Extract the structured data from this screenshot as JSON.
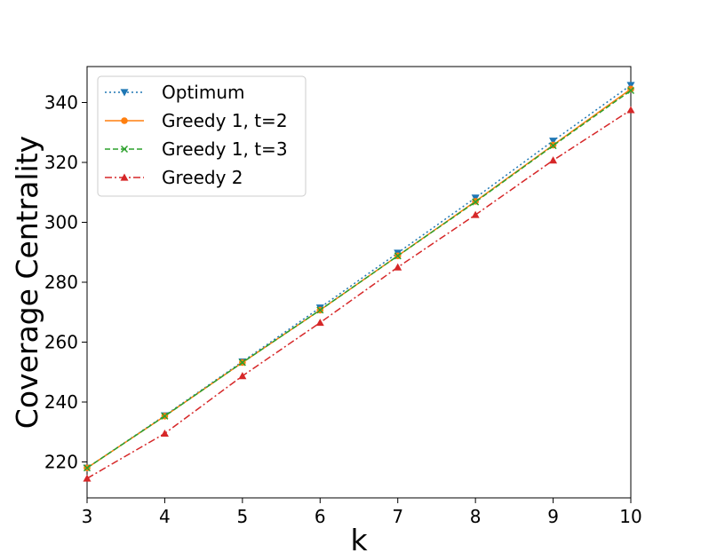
{
  "chart_data": {
    "type": "line",
    "title": "",
    "xlabel": "k",
    "ylabel": "Coverage Centrality",
    "x": [
      3,
      4,
      5,
      6,
      7,
      8,
      9,
      10
    ],
    "xlim": [
      3,
      10
    ],
    "ylim": [
      208,
      352
    ],
    "xticks": [
      "3",
      "4",
      "5",
      "6",
      "7",
      "8",
      "9",
      "10"
    ],
    "yticks": [
      "220",
      "240",
      "260",
      "280",
      "300",
      "320",
      "340"
    ],
    "grid": false,
    "legend_position": "upper-left",
    "series": [
      {
        "name": "Optimum",
        "values": [
          218,
          235.5,
          253.5,
          271.5,
          289.8,
          308.2,
          327.2,
          345.8
        ],
        "color": "#1f77b4",
        "dash": "2,3",
        "marker": "triangle-down"
      },
      {
        "name": "Greedy 1, t=2",
        "values": [
          218,
          235.3,
          253.2,
          270.7,
          288.8,
          307,
          325.8,
          344.5
        ],
        "color": "#ff7f0e",
        "dash": "",
        "marker": "circle"
      },
      {
        "name": "Greedy 1, t=3",
        "values": [
          218,
          235.3,
          253.2,
          270.7,
          288.8,
          306.8,
          325.6,
          344
        ],
        "color": "#2ca02c",
        "dash": "6,3",
        "marker": "x"
      },
      {
        "name": "Greedy 2",
        "values": [
          214.5,
          229.5,
          248.7,
          266.5,
          285,
          302.5,
          320.7,
          337.5
        ],
        "color": "#d62728",
        "dash": "8,3,2,3",
        "marker": "triangle-up"
      }
    ]
  }
}
